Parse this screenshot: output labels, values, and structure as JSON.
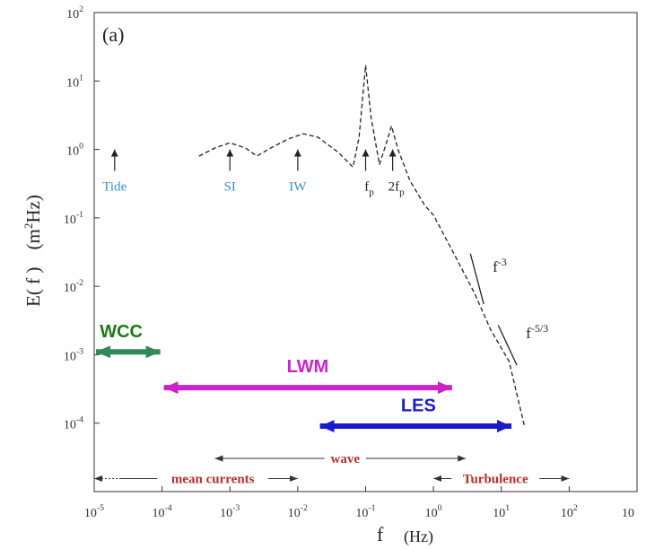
{
  "chart_data": {
    "type": "line",
    "panel_label": "(a)",
    "xlabel": "f",
    "xlabel_unit": "(Hz)",
    "ylabel": "E( f )",
    "ylabel_unit": "(m",
    "ylabel_unit_sup": "2",
    "ylabel_unit_tail": "Hz)",
    "x_scale": "log",
    "y_scale": "log",
    "xlim": [
      1e-05,
      1000
    ],
    "ylim": [
      1e-05,
      100
    ],
    "grid": false,
    "x_ticks": [
      {
        "value": 1e-05,
        "base": "10",
        "exp": "-5"
      },
      {
        "value": 0.0001,
        "base": "10",
        "exp": "-4"
      },
      {
        "value": 0.001,
        "base": "10",
        "exp": "-3"
      },
      {
        "value": 0.01,
        "base": "10",
        "exp": "-2"
      },
      {
        "value": 0.1,
        "base": "10",
        "exp": "-1"
      },
      {
        "value": 1,
        "base": "10",
        "exp": "0"
      },
      {
        "value": 10,
        "base": "10",
        "exp": "1"
      },
      {
        "value": 100,
        "base": "10",
        "exp": "2"
      },
      {
        "value": 1000,
        "base": "10",
        "exp": ""
      }
    ],
    "y_ticks": [
      {
        "value": 100,
        "base": "10",
        "exp": "2"
      },
      {
        "value": 10,
        "base": "10",
        "exp": "1"
      },
      {
        "value": 1,
        "base": "10",
        "exp": "0"
      },
      {
        "value": 0.1,
        "base": "10",
        "exp": "-1"
      },
      {
        "value": 0.01,
        "base": "10",
        "exp": "-2"
      },
      {
        "value": 0.001,
        "base": "10",
        "exp": "-3"
      },
      {
        "value": 0.0001,
        "base": "10",
        "exp": "-4"
      }
    ],
    "series": [
      {
        "style": "dashed",
        "color": "#222222",
        "points": [
          [
            0.00035,
            0.8
          ],
          [
            0.0006,
            1.05
          ],
          [
            0.001,
            1.25
          ],
          [
            0.0017,
            1.05
          ],
          [
            0.0025,
            0.8
          ],
          [
            0.004,
            1.05
          ],
          [
            0.007,
            1.4
          ],
          [
            0.012,
            1.7
          ],
          [
            0.02,
            1.5
          ],
          [
            0.04,
            0.9
          ],
          [
            0.065,
            0.55
          ],
          [
            0.08,
            1.5
          ],
          [
            0.1,
            17
          ],
          [
            0.12,
            3
          ],
          [
            0.16,
            0.6
          ],
          [
            0.2,
            1.2
          ],
          [
            0.24,
            2.2
          ],
          [
            0.3,
            1.0
          ],
          [
            0.45,
            0.35
          ],
          [
            0.75,
            0.15
          ],
          [
            1.0,
            0.11
          ],
          [
            2.0,
            0.03
          ],
          [
            4.0,
            0.008
          ],
          [
            7.0,
            0.0023
          ],
          [
            13.0,
            0.0008
          ],
          [
            22.0,
            9e-05
          ]
        ]
      }
    ],
    "arrows": [
      {
        "label": "Tide",
        "x": 2e-05,
        "y_from": 0.25,
        "y_to": 1.0,
        "color": "#3b8ec2"
      },
      {
        "label": "SI",
        "x": 0.001,
        "y_from": 0.25,
        "y_to": 1.0,
        "color": "#3b8ec2"
      },
      {
        "label": "IW",
        "x": 0.01,
        "y_from": 0.25,
        "y_to": 1.0,
        "color": "#3b8ec2"
      },
      {
        "label": "f",
        "sub": "p",
        "x": 0.1,
        "y_from": 0.25,
        "y_to": 1.0,
        "color": "#222222"
      },
      {
        "label": "2f",
        "sub": "p",
        "x": 0.25,
        "y_from": 0.25,
        "y_to": 1.0,
        "color": "#222222"
      }
    ],
    "slope_lines": [
      {
        "label": "f",
        "exp": "-3",
        "x1": 3.5,
        "y1": 0.03,
        "x2": 5.5,
        "y2": 0.0055
      },
      {
        "label": "f",
        "exp": "-5/3",
        "x1": 9.0,
        "y1": 0.0027,
        "x2": 17.0,
        "y2": 0.0007
      }
    ],
    "ranges": [
      {
        "label": "WCC",
        "from": 1e-05,
        "to": 0.0001,
        "y": 0.0011,
        "color": "#2e8b57",
        "label_color": "#1a7a1a",
        "label_x": 2.5e-05,
        "label_y": 0.0018
      },
      {
        "label": "LWM",
        "from": 0.0001,
        "to": 2.0,
        "y": 0.00033,
        "color": "#cc22cc",
        "label_color": "#cc22cc",
        "label_x": 0.014,
        "label_y": 0.00055
      },
      {
        "label": "LES",
        "from": 0.02,
        "to": 15.0,
        "y": 9.05e-05,
        "color": "#1a1acc",
        "label_color": "#1a1acc",
        "label_x": 0.6,
        "label_y": 0.00015
      }
    ],
    "regimes": [
      {
        "label": "mean currents",
        "from": 1e-05,
        "to": 0.01,
        "dotted_until": 2.5e-05,
        "y": 1.55e-05,
        "label_x": 0.00056
      },
      {
        "label": "wave",
        "from": 0.0006,
        "to": 3.0,
        "y": 3.05e-05,
        "label_x": 0.05
      },
      {
        "label": "Turbulence",
        "from": 1.0,
        "to": 100.0,
        "y": 1.55e-05,
        "label_x": 8.2
      }
    ],
    "regime_label_color": "#b5302a"
  }
}
